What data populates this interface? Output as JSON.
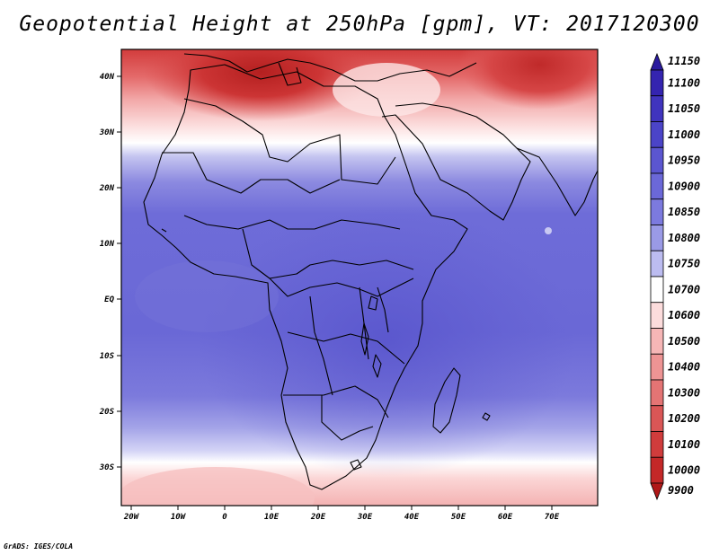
{
  "title": "Geopotential Height at 250hPa [gpm], VT: 2017120300",
  "credit": "GrADS: IGES/COLA",
  "axes": {
    "y_ticks": [
      "40N",
      "30N",
      "20N",
      "10N",
      "EQ",
      "10S",
      "20S",
      "30S"
    ],
    "x_ticks": [
      "20W",
      "10W",
      "0",
      "10E",
      "20E",
      "30E",
      "40E",
      "50E",
      "60E",
      "70E"
    ]
  },
  "colorbar": {
    "levels": [
      "11150",
      "11100",
      "11050",
      "11000",
      "10950",
      "10900",
      "10850",
      "10800",
      "10750",
      "10700",
      "10600",
      "10500",
      "10400",
      "10300",
      "10200",
      "10100",
      "10000",
      "9900"
    ],
    "colors": [
      "#2a1a9e",
      "#3424b0",
      "#4034be",
      "#4b44c8",
      "#5b56d0",
      "#6b68d8",
      "#7c7ade",
      "#9a9ae6",
      "#bcbcf0",
      "#ffffff",
      "#fcdcdc",
      "#f6b6b6",
      "#ee9494",
      "#e47474",
      "#da5656",
      "#d03c3c",
      "#c42828",
      "#b01818"
    ]
  }
}
